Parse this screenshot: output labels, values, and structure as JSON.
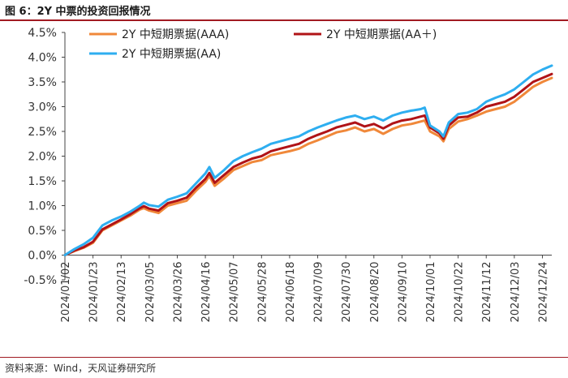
{
  "figure_title": "图 6：2Y 中票的投资回报情况",
  "source": "资料来源：Wind，天风证券研究所",
  "chart_data": {
    "type": "line",
    "title": "",
    "xlabel": "",
    "ylabel": "",
    "ylim": [
      -0.5,
      4.5
    ],
    "y_ticks": [
      -0.5,
      0.0,
      0.5,
      1.0,
      1.5,
      2.0,
      2.5,
      3.0,
      3.5,
      4.0,
      4.5
    ],
    "y_tick_labels": [
      "-0.5%",
      "0.0%",
      "0.5%",
      "1.0%",
      "1.5%",
      "2.0%",
      "2.5%",
      "3.0%",
      "3.5%",
      "4.0%",
      "4.5%"
    ],
    "x_range": [
      "2024/01/02",
      "2024/12/31"
    ],
    "x_tick_labels": [
      "2024/01/02",
      "2024/01/23",
      "2024/02/13",
      "2024/03/05",
      "2024/03/26",
      "2024/04/16",
      "2024/05/07",
      "2024/05/28",
      "2024/06/18",
      "2024/07/09",
      "2024/07/30",
      "2024/08/20",
      "2024/09/10",
      "2024/10/01",
      "2024/10/22",
      "2024/11/12",
      "2024/12/03",
      "2024/12/24"
    ],
    "grid": false,
    "legend_position": "top",
    "series": [
      {
        "name": "2Y 中短期票据(AAA)",
        "color": "#f0883a",
        "x": [
          "2024/01/02",
          "2024/01/09",
          "2024/01/16",
          "2024/01/23",
          "2024/01/30",
          "2024/02/06",
          "2024/02/13",
          "2024/02/20",
          "2024/02/27",
          "2024/03/01",
          "2024/03/05",
          "2024/03/12",
          "2024/03/19",
          "2024/03/26",
          "2024/04/02",
          "2024/04/09",
          "2024/04/16",
          "2024/04/19",
          "2024/04/23",
          "2024/04/30",
          "2024/05/07",
          "2024/05/14",
          "2024/05/21",
          "2024/05/28",
          "2024/06/04",
          "2024/06/11",
          "2024/06/18",
          "2024/06/25",
          "2024/07/02",
          "2024/07/09",
          "2024/07/16",
          "2024/07/23",
          "2024/07/30",
          "2024/08/06",
          "2024/08/13",
          "2024/08/20",
          "2024/08/27",
          "2024/09/03",
          "2024/09/10",
          "2024/09/17",
          "2024/09/24",
          "2024/09/27",
          "2024/10/01",
          "2024/10/08",
          "2024/10/11",
          "2024/10/15",
          "2024/10/22",
          "2024/10/29",
          "2024/11/05",
          "2024/11/12",
          "2024/11/19",
          "2024/11/26",
          "2024/12/03",
          "2024/12/10",
          "2024/12/17",
          "2024/12/24",
          "2024/12/31"
        ],
        "values": [
          0.0,
          0.08,
          0.15,
          0.25,
          0.5,
          0.6,
          0.7,
          0.8,
          0.92,
          0.95,
          0.9,
          0.85,
          1.0,
          1.05,
          1.1,
          1.3,
          1.48,
          1.6,
          1.4,
          1.55,
          1.72,
          1.8,
          1.88,
          1.92,
          2.02,
          2.06,
          2.1,
          2.15,
          2.25,
          2.32,
          2.4,
          2.48,
          2.52,
          2.58,
          2.5,
          2.55,
          2.45,
          2.55,
          2.62,
          2.65,
          2.7,
          2.72,
          2.5,
          2.4,
          2.3,
          2.55,
          2.7,
          2.75,
          2.82,
          2.9,
          2.95,
          3.0,
          3.1,
          3.25,
          3.4,
          3.5,
          3.58
        ]
      },
      {
        "name": "2Y 中短期票据(AA＋)",
        "color": "#b01317",
        "x": [
          "2024/01/02",
          "2024/01/09",
          "2024/01/16",
          "2024/01/23",
          "2024/01/30",
          "2024/02/06",
          "2024/02/13",
          "2024/02/20",
          "2024/02/27",
          "2024/03/01",
          "2024/03/05",
          "2024/03/12",
          "2024/03/19",
          "2024/03/26",
          "2024/04/02",
          "2024/04/09",
          "2024/04/16",
          "2024/04/19",
          "2024/04/23",
          "2024/04/30",
          "2024/05/07",
          "2024/05/14",
          "2024/05/21",
          "2024/05/28",
          "2024/06/04",
          "2024/06/11",
          "2024/06/18",
          "2024/06/25",
          "2024/07/02",
          "2024/07/09",
          "2024/07/16",
          "2024/07/23",
          "2024/07/30",
          "2024/08/06",
          "2024/08/13",
          "2024/08/20",
          "2024/08/27",
          "2024/09/03",
          "2024/09/10",
          "2024/09/17",
          "2024/09/24",
          "2024/09/27",
          "2024/10/01",
          "2024/10/08",
          "2024/10/11",
          "2024/10/15",
          "2024/10/22",
          "2024/10/29",
          "2024/11/05",
          "2024/11/12",
          "2024/11/19",
          "2024/11/26",
          "2024/12/03",
          "2024/12/10",
          "2024/12/17",
          "2024/12/24",
          "2024/12/31"
        ],
        "values": [
          0.0,
          0.09,
          0.16,
          0.27,
          0.52,
          0.62,
          0.72,
          0.83,
          0.95,
          0.99,
          0.94,
          0.9,
          1.05,
          1.1,
          1.16,
          1.36,
          1.54,
          1.66,
          1.46,
          1.62,
          1.78,
          1.87,
          1.95,
          2.0,
          2.1,
          2.15,
          2.2,
          2.25,
          2.35,
          2.43,
          2.5,
          2.58,
          2.63,
          2.68,
          2.6,
          2.65,
          2.56,
          2.66,
          2.72,
          2.75,
          2.8,
          2.82,
          2.58,
          2.46,
          2.35,
          2.62,
          2.78,
          2.8,
          2.88,
          3.0,
          3.05,
          3.1,
          3.2,
          3.35,
          3.5,
          3.58,
          3.66
        ]
      },
      {
        "name": "2Y 中短期票据(AA)",
        "color": "#2eaef0",
        "x": [
          "2024/01/02",
          "2024/01/09",
          "2024/01/16",
          "2024/01/23",
          "2024/01/30",
          "2024/02/06",
          "2024/02/13",
          "2024/02/20",
          "2024/02/27",
          "2024/03/01",
          "2024/03/05",
          "2024/03/12",
          "2024/03/19",
          "2024/03/26",
          "2024/04/02",
          "2024/04/09",
          "2024/04/16",
          "2024/04/19",
          "2024/04/23",
          "2024/04/30",
          "2024/05/07",
          "2024/05/14",
          "2024/05/21",
          "2024/05/28",
          "2024/06/04",
          "2024/06/11",
          "2024/06/18",
          "2024/06/25",
          "2024/07/02",
          "2024/07/09",
          "2024/07/16",
          "2024/07/23",
          "2024/07/30",
          "2024/08/06",
          "2024/08/13",
          "2024/08/20",
          "2024/08/27",
          "2024/09/03",
          "2024/09/10",
          "2024/09/17",
          "2024/09/24",
          "2024/09/27",
          "2024/10/01",
          "2024/10/08",
          "2024/10/11",
          "2024/10/15",
          "2024/10/22",
          "2024/10/29",
          "2024/11/05",
          "2024/11/12",
          "2024/11/19",
          "2024/11/26",
          "2024/12/03",
          "2024/12/10",
          "2024/12/17",
          "2024/12/24",
          "2024/12/31"
        ],
        "values": [
          0.0,
          0.12,
          0.22,
          0.35,
          0.6,
          0.7,
          0.78,
          0.88,
          1.0,
          1.06,
          1.01,
          0.98,
          1.12,
          1.18,
          1.25,
          1.45,
          1.65,
          1.78,
          1.56,
          1.72,
          1.9,
          2.0,
          2.08,
          2.15,
          2.25,
          2.3,
          2.35,
          2.4,
          2.5,
          2.58,
          2.65,
          2.72,
          2.78,
          2.82,
          2.75,
          2.8,
          2.72,
          2.82,
          2.88,
          2.92,
          2.95,
          2.98,
          2.62,
          2.5,
          2.4,
          2.68,
          2.85,
          2.88,
          2.95,
          3.1,
          3.18,
          3.25,
          3.35,
          3.5,
          3.65,
          3.75,
          3.83
        ]
      }
    ]
  }
}
